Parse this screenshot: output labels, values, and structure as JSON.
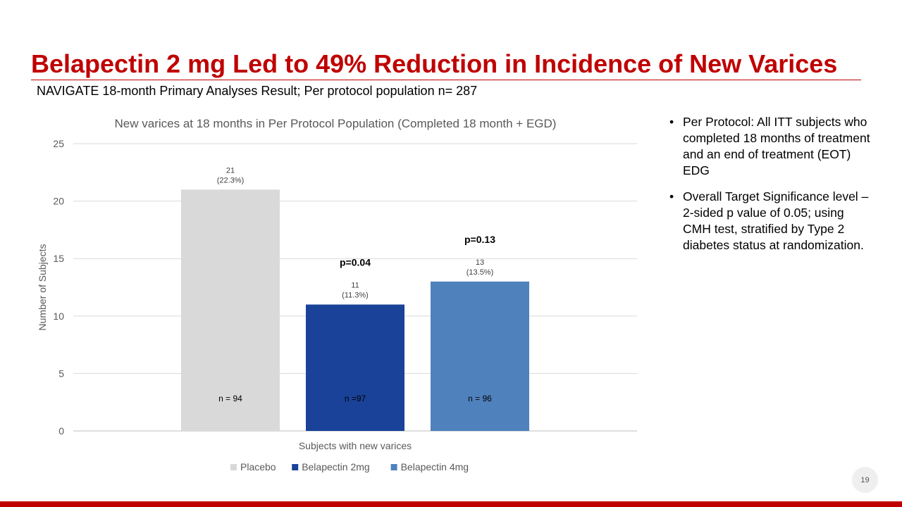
{
  "slide": {
    "title": "Belapectin 2 mg Led to 49% Reduction in Incidence of New Varices",
    "subtitle": "NAVIGATE 18-month Primary Analyses Result; Per protocol population n= 287",
    "page_number": "19"
  },
  "bullets": [
    "Per Protocol: All ITT subjects who completed 18 months of treatment and an end of treatment (EOT) EDG",
    "Overall Target Significance level – 2-sided p value of 0.05; using CMH test, stratified by Type 2 diabetes status at randomization."
  ],
  "colors": {
    "title": "#c00000",
    "placebo": "#d9d9d9",
    "belapectin_2mg": "#1a4298",
    "belapectin_4mg": "#4f81bd"
  },
  "chart_data": {
    "type": "bar",
    "title": "New varices at 18 months in Per Protocol Population (Completed 18 month + EGD)",
    "xlabel": "Subjects with new varices",
    "ylabel": "Number of Subjects",
    "ylim": [
      0,
      25
    ],
    "yticks": [
      0,
      5,
      10,
      15,
      20,
      25
    ],
    "grid": true,
    "legend_position": "bottom",
    "categories": [
      "Subjects with new varices"
    ],
    "series": [
      {
        "name": "Placebo",
        "values": [
          21
        ],
        "label_value": "21",
        "label_pct": "(22.3%)",
        "n_label": "n = 94",
        "p_value": "",
        "color": "#d9d9d9"
      },
      {
        "name": "Belapectin 2mg",
        "values": [
          11
        ],
        "label_value": "11",
        "label_pct": "(11.3%)",
        "n_label": "n =97",
        "p_value": "p=0.04",
        "color": "#1a4298"
      },
      {
        "name": "Belapectin 4mg",
        "values": [
          13
        ],
        "label_value": "13",
        "label_pct": "(13.5%)",
        "n_label": "n = 96",
        "p_value": "p=0.13",
        "color": "#4f81bd"
      }
    ]
  }
}
